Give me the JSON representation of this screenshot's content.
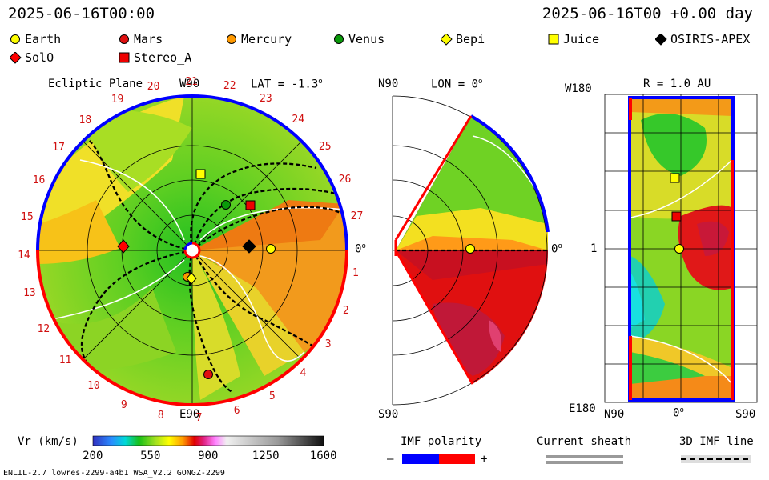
{
  "header": {
    "time_left": "2025-06-16T00:00",
    "time_right": "2025-06-16T00 +0.00 day"
  },
  "legend": [
    {
      "name": "Earth",
      "color": "#ffff00",
      "shape": "circle-icon"
    },
    {
      "name": "Mars",
      "color": "#e01010",
      "shape": "circle-icon"
    },
    {
      "name": "Mercury",
      "color": "#ff9900",
      "shape": "circle-icon"
    },
    {
      "name": "Venus",
      "color": "#0a9a0a",
      "shape": "circle-icon"
    },
    {
      "name": "Bepi",
      "color": "#ffff00",
      "shape": "diamond-icon"
    },
    {
      "name": "Juice",
      "color": "#ffff00",
      "shape": "square-icon"
    },
    {
      "name": "OSIRIS-APEX",
      "color": "#000000",
      "shape": "diamond-icon"
    },
    {
      "name": "SolO",
      "color": "#ff0000",
      "shape": "diamond-icon"
    },
    {
      "name": "Stereo_A",
      "color": "#ee0000",
      "shape": "square-icon"
    }
  ],
  "ecliptic": {
    "title": "Ecliptic Plane",
    "top_label": "W90",
    "bottom_label": "E90",
    "right_label": "0",
    "lat": "LAT = -1.3",
    "degree_mark": "o",
    "carrington": [
      "1",
      "2",
      "3",
      "4",
      "5",
      "6",
      "7",
      "8",
      "9",
      "10",
      "11",
      "12",
      "13",
      "14",
      "15",
      "16",
      "17",
      "18",
      "19",
      "20",
      "21",
      "22",
      "23",
      "24",
      "25",
      "26",
      "27"
    ]
  },
  "meridional": {
    "n_label": "N90",
    "s_label": "S90",
    "lon": "LON = 0",
    "right_label": "0",
    "degree_mark": "o"
  },
  "sphere": {
    "r_label": "R = 1.0 AU",
    "w_label": "W180",
    "e_label": "E180",
    "mid_label": "1",
    "bottom_left": "N90",
    "bottom_mid": "0",
    "bottom_right": "S90",
    "degree_mark": "o"
  },
  "colorbar": {
    "label": "Vr (km/s)",
    "ticks": [
      "200",
      "550",
      "900",
      "1250",
      "1600"
    ]
  },
  "imf": {
    "label": "IMF polarity",
    "minus": "–",
    "plus": "+",
    "neg_color": "#0000ff",
    "pos_color": "#ff0000"
  },
  "sheath": {
    "label": "Current sheath"
  },
  "imfline": {
    "label": "3D IMF line"
  },
  "footer": {
    "model": "ENLIL-2.7 lowres-2299-a4b1 WSA_V2.2 GONGZ-2299"
  }
}
